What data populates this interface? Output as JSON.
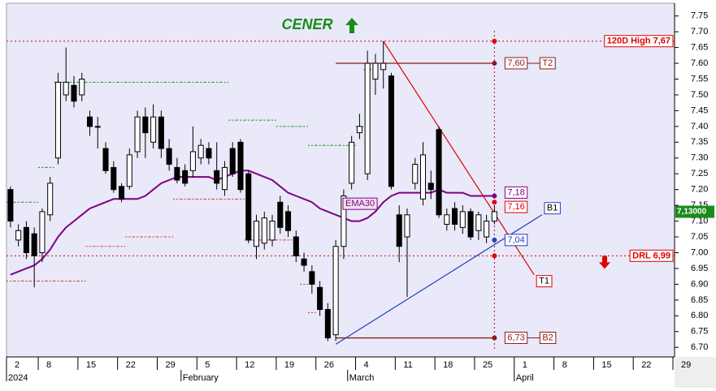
{
  "chart_data": {
    "type": "candlestick",
    "title": "CENER",
    "x": [
      "2024-01-02",
      "2024-01-03",
      "2024-01-04",
      "2024-01-05",
      "2024-01-08",
      "2024-01-09",
      "2024-01-10",
      "2024-01-11",
      "2024-01-12",
      "2024-01-15",
      "2024-01-16",
      "2024-01-17",
      "2024-01-18",
      "2024-01-19",
      "2024-01-22",
      "2024-01-23",
      "2024-01-24",
      "2024-01-25",
      "2024-01-26",
      "2024-01-29",
      "2024-01-30",
      "2024-01-31",
      "2024-02-01",
      "2024-02-02",
      "2024-02-05",
      "2024-02-06",
      "2024-02-07",
      "2024-02-08",
      "2024-02-09",
      "2024-02-12",
      "2024-02-13",
      "2024-02-14",
      "2024-02-15",
      "2024-02-16",
      "2024-02-19",
      "2024-02-20",
      "2024-02-21",
      "2024-02-22",
      "2024-02-23",
      "2024-02-26",
      "2024-02-27",
      "2024-02-28",
      "2024-02-29",
      "2024-03-01",
      "2024-03-04",
      "2024-03-05",
      "2024-03-06",
      "2024-03-07",
      "2024-03-08",
      "2024-03-11",
      "2024-03-12",
      "2024-03-13",
      "2024-03-14",
      "2024-03-15",
      "2024-03-18",
      "2024-03-19",
      "2024-03-20",
      "2024-03-21",
      "2024-03-22",
      "2024-03-25",
      "2024-03-26",
      "2024-03-27"
    ],
    "open": [
      7.2,
      7.04,
      7.08,
      7.06,
      7.0,
      7.12,
      7.3,
      7.5,
      7.53,
      7.5,
      7.43,
      7.4,
      7.33,
      7.27,
      7.21,
      7.21,
      7.32,
      7.43,
      7.35,
      7.43,
      7.33,
      7.27,
      7.26,
      7.26,
      7.3,
      7.33,
      7.26,
      7.2,
      7.33,
      7.35,
      7.25,
      7.02,
      7.03,
      7.04,
      7.16,
      7.13,
      7.05,
      6.98,
      6.94,
      6.89,
      6.82,
      6.74,
      7.02,
      7.22,
      7.38,
      7.25,
      7.55,
      7.58,
      7.56,
      7.12,
      7.05,
      7.22,
      7.17,
      7.22,
      7.39,
      7.09,
      7.14,
      7.08,
      7.13,
      7.07,
      7.05,
      7.1
    ],
    "high": [
      7.21,
      7.09,
      7.1,
      7.08,
      7.14,
      7.24,
      7.57,
      7.65,
      7.56,
      7.57,
      7.45,
      7.43,
      7.35,
      7.29,
      7.22,
      7.33,
      7.45,
      7.46,
      7.47,
      7.45,
      7.36,
      7.3,
      7.28,
      7.4,
      7.36,
      7.35,
      7.35,
      7.29,
      7.35,
      7.36,
      7.26,
      7.12,
      7.13,
      7.12,
      7.18,
      7.15,
      7.07,
      7.0,
      6.96,
      6.91,
      6.84,
      7.04,
      7.2,
      7.37,
      7.44,
      7.64,
      7.63,
      7.67,
      7.57,
      7.15,
      7.14,
      7.3,
      7.35,
      7.26,
      7.4,
      7.14,
      7.16,
      7.15,
      7.14,
      7.13,
      7.12,
      7.15
    ],
    "low": [
      7.08,
      7.02,
      6.98,
      6.89,
      6.97,
      7.1,
      7.28,
      7.48,
      7.46,
      7.48,
      7.37,
      7.33,
      7.25,
      7.19,
      7.16,
      7.2,
      7.3,
      7.3,
      7.33,
      7.3,
      7.26,
      7.22,
      7.21,
      7.24,
      7.28,
      7.28,
      7.2,
      7.18,
      7.24,
      7.19,
      7.03,
      6.98,
      7.01,
      7.02,
      7.06,
      7.05,
      6.97,
      6.94,
      6.87,
      6.8,
      6.72,
      6.72,
      6.98,
      7.2,
      7.36,
      7.23,
      7.5,
      7.52,
      7.2,
      6.97,
      6.86,
      7.2,
      7.15,
      7.17,
      7.11,
      7.07,
      7.07,
      7.06,
      7.04,
      7.04,
      7.03,
      7.09
    ],
    "close": [
      7.1,
      7.07,
      7.0,
      6.99,
      7.13,
      7.22,
      7.54,
      7.54,
      7.48,
      7.55,
      7.4,
      7.4,
      7.26,
      7.2,
      7.17,
      7.31,
      7.43,
      7.38,
      7.43,
      7.33,
      7.28,
      7.23,
      7.22,
      7.32,
      7.34,
      7.3,
      7.22,
      7.27,
      7.25,
      7.2,
      7.04,
      7.1,
      7.11,
      7.1,
      7.08,
      7.07,
      6.99,
      6.96,
      6.9,
      6.82,
      6.73,
      7.02,
      7.18,
      7.35,
      7.4,
      7.6,
      7.6,
      7.6,
      7.21,
      7.02,
      7.12,
      7.28,
      7.31,
      7.2,
      7.12,
      7.12,
      7.09,
      7.13,
      7.05,
      7.12,
      7.1,
      7.13
    ],
    "candle_colors": {
      "up": "#ffffff",
      "down": "#000000",
      "outline": "#000000"
    },
    "series": [
      {
        "name": "EMA30",
        "color": "#800080",
        "style": "line",
        "values": [
          6.93,
          6.94,
          6.95,
          6.96,
          6.98,
          7.01,
          7.05,
          7.08,
          7.1,
          7.12,
          7.14,
          7.15,
          7.16,
          7.17,
          7.17,
          7.17,
          7.17,
          7.18,
          7.2,
          7.22,
          7.23,
          7.24,
          7.24,
          7.24,
          7.24,
          7.24,
          7.23,
          7.24,
          7.25,
          7.26,
          7.26,
          7.25,
          7.24,
          7.23,
          7.21,
          7.19,
          7.18,
          7.17,
          7.16,
          7.14,
          7.13,
          7.12,
          7.11,
          7.1,
          7.1,
          7.11,
          7.13,
          7.16,
          7.18,
          7.19,
          7.19,
          7.19,
          7.19,
          7.19,
          7.2,
          7.19,
          7.19,
          7.19,
          7.18,
          7.18,
          7.18,
          7.18
        ]
      },
      {
        "color": "#1e8c1e",
        "style": "step",
        "values": [
          7.16,
          7.16,
          7.16,
          7.16,
          7.27,
          7.27,
          7.54,
          7.54,
          7.54,
          7.54,
          7.54,
          7.54,
          7.54,
          7.54,
          7.54,
          7.54,
          7.54,
          7.54,
          7.54,
          7.54,
          7.54,
          7.54,
          7.54,
          7.54,
          7.54,
          7.54,
          7.54,
          7.54,
          7.42,
          7.42,
          7.42,
          7.42,
          7.42,
          7.42,
          7.4,
          7.4,
          7.4,
          7.4,
          7.34,
          7.34,
          7.34,
          7.34,
          7.34,
          7.34,
          7.4,
          7.58,
          null,
          null,
          null,
          null,
          null,
          null,
          null,
          null,
          null,
          null,
          null,
          null,
          null,
          null,
          null,
          null
        ]
      },
      {
        "color": "#e03030",
        "style": "step",
        "values": [
          6.91,
          6.91,
          6.91,
          6.91,
          6.91,
          6.91,
          6.91,
          6.91,
          6.91,
          6.91,
          7.02,
          7.02,
          7.02,
          7.02,
          7.02,
          7.05,
          7.05,
          7.05,
          7.05,
          7.05,
          7.05,
          7.17,
          7.17,
          7.17,
          7.17,
          7.17,
          7.17,
          7.17,
          7.17,
          7.17,
          7.04,
          7.04,
          7.04,
          7.04,
          7.04,
          7.04,
          6.99,
          6.9,
          6.81,
          null,
          null,
          null,
          null,
          null,
          null,
          null,
          null,
          null,
          null,
          null,
          null,
          null,
          null,
          null,
          null,
          null,
          null,
          null,
          null,
          null,
          null,
          null
        ]
      }
    ],
    "levels": [
      {
        "value": 7.67,
        "label": "120D High 7,67",
        "color": "#e00000"
      },
      {
        "value": 6.99,
        "label": "DRL 6,99",
        "color": "#e00000"
      }
    ],
    "targets": [
      {
        "value": 7.6,
        "label": "7,60",
        "tag": "T2",
        "start": "2024-02-28",
        "color": "#8b1a1a"
      },
      {
        "value": 6.73,
        "label": "6,73",
        "tag": "B2",
        "start": "2024-02-28",
        "color": "#8b1a1a"
      }
    ],
    "markers": [
      {
        "value": 7.18,
        "label": "7,18",
        "color": "#800080"
      },
      {
        "value": 7.16,
        "label": "7,16",
        "color": "#e00000"
      },
      {
        "value": 7.04,
        "label": "7,04",
        "color": "#2040c0"
      }
    ],
    "trendlines": [
      {
        "label": "T1",
        "color": "#e00000",
        "start": [
          "2024-03-07",
          7.67
        ],
        "end": [
          "2024-04-03",
          6.93
        ]
      },
      {
        "label": "B1",
        "color": "#2040c0",
        "start": [
          "2024-02-28",
          6.71
        ],
        "end": [
          "2024-04-04",
          7.12
        ]
      }
    ],
    "last_price": {
      "value": 7.13,
      "label": "7,13000",
      "color": "#1a8c1a"
    },
    "xlim": [
      "2024-01-02",
      "2024-04-29"
    ],
    "xticks": [
      {
        "value": "2024-01-02",
        "label": "2"
      },
      {
        "value": "2024-01-08",
        "label": "8"
      },
      {
        "value": "2024-01-15",
        "label": "15"
      },
      {
        "value": "2024-01-22",
        "label": "22"
      },
      {
        "value": "2024-01-29",
        "label": "29"
      },
      {
        "value": "2024-02-05",
        "label": "5"
      },
      {
        "value": "2024-02-12",
        "label": "12"
      },
      {
        "value": "2024-02-19",
        "label": "19"
      },
      {
        "value": "2024-02-26",
        "label": "26"
      },
      {
        "value": "2024-03-04",
        "label": "4"
      },
      {
        "value": "2024-03-11",
        "label": "11"
      },
      {
        "value": "2024-03-18",
        "label": "18"
      },
      {
        "value": "2024-03-25",
        "label": "25"
      },
      {
        "value": "2024-04-01",
        "label": "1"
      },
      {
        "value": "2024-04-08",
        "label": "8"
      },
      {
        "value": "2024-04-15",
        "label": "15"
      },
      {
        "value": "2024-04-22",
        "label": "22"
      },
      {
        "value": "2024-04-29",
        "label": "29"
      }
    ],
    "months": [
      {
        "value": "2024-01-02",
        "label": "2024"
      },
      {
        "value": "2024-02-01",
        "label": "February"
      },
      {
        "value": "2024-03-01",
        "label": "March"
      },
      {
        "value": "2024-04-01",
        "label": "April"
      }
    ],
    "ylim": [
      6.68,
      7.78
    ],
    "yticks": [
      {
        "value": 6.7,
        "label": "6.70"
      },
      {
        "value": 6.75,
        "label": "6.75"
      },
      {
        "value": 6.8,
        "label": "6.80"
      },
      {
        "value": 6.85,
        "label": "6.85"
      },
      {
        "value": 6.9,
        "label": "6.90"
      },
      {
        "value": 6.95,
        "label": "6.95"
      },
      {
        "value": 7.0,
        "label": "7.00"
      },
      {
        "value": 7.05,
        "label": "7.05"
      },
      {
        "value": 7.1,
        "label": "7.10"
      },
      {
        "value": 7.15,
        "label": "7.15"
      },
      {
        "value": 7.2,
        "label": "7.20"
      },
      {
        "value": 7.25,
        "label": "7.25"
      },
      {
        "value": 7.3,
        "label": "7.30"
      },
      {
        "value": 7.35,
        "label": "7.35"
      },
      {
        "value": 7.4,
        "label": "7.40"
      },
      {
        "value": 7.45,
        "label": "7.45"
      },
      {
        "value": 7.5,
        "label": "7.50"
      },
      {
        "value": 7.55,
        "label": "7.55"
      },
      {
        "value": 7.6,
        "label": "7.60"
      },
      {
        "value": 7.65,
        "label": "7.65"
      },
      {
        "value": 7.7,
        "label": "7.70"
      },
      {
        "value": 7.75,
        "label": "7.75"
      }
    ]
  }
}
